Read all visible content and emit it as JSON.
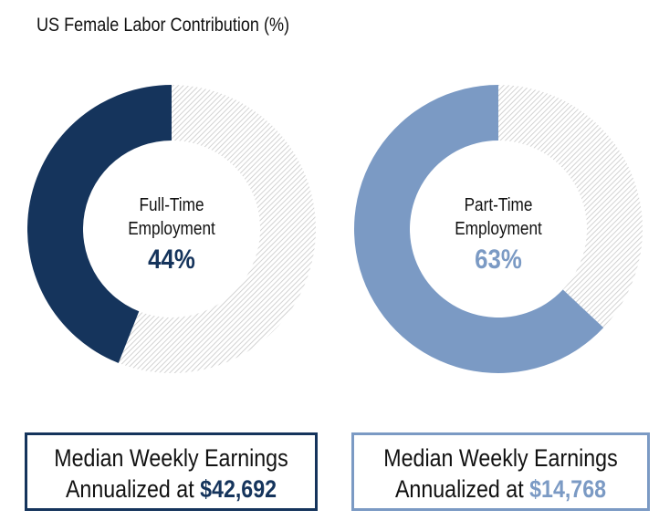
{
  "chart_data": {
    "type": "pie",
    "title": "US Female Labor Contribution (%)",
    "charts": [
      {
        "label_line1": "Full-Time",
        "label_line2": "Employment",
        "value": 44,
        "value_label": "44%",
        "color": "#15345c",
        "box_line1": "Median Weekly Earnings",
        "box_line2_prefix": "Annualized at",
        "box_value": "$42,692"
      },
      {
        "label_line1": "Part-Time",
        "label_line2": "Employment",
        "value": 63,
        "value_label": "63%",
        "color": "#7b9ac4",
        "box_line1": "Median Weekly Earnings",
        "box_line2_prefix": "Annualized at",
        "box_value": "$14,768"
      }
    ],
    "remainder_style": "hatched-gray"
  }
}
